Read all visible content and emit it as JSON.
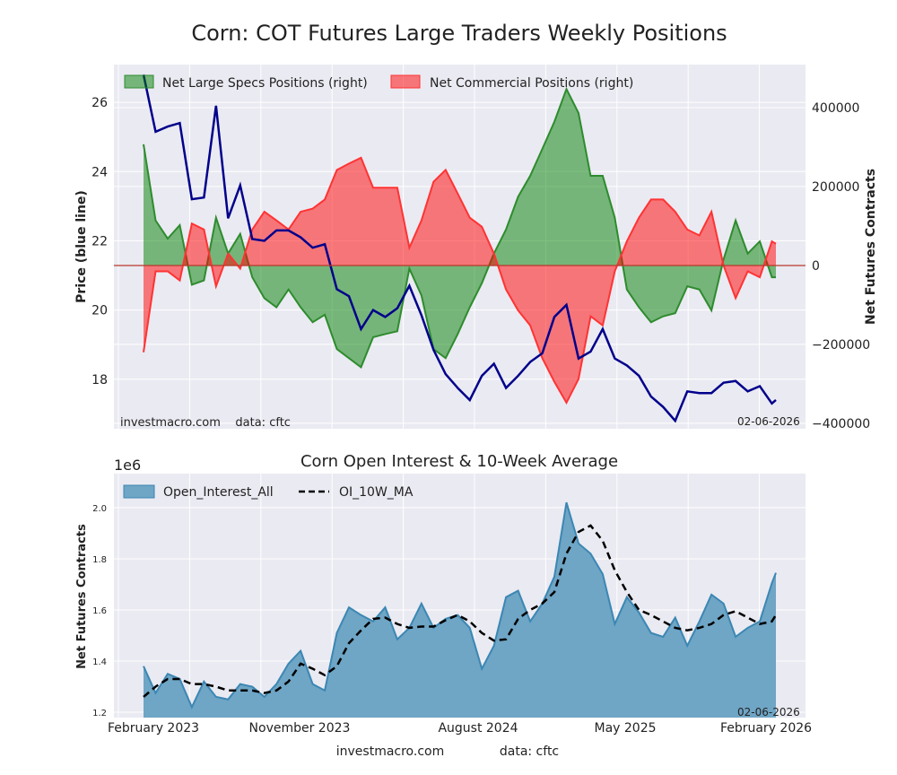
{
  "title": "Corn: COT Futures Large Traders Weekly Positions",
  "watermark_top": "investmacro.com    data: cftc",
  "date_top": "02-06-2026",
  "date_bottom": "02-06-2026",
  "footer": {
    "site": "investmacro.com",
    "source": "data: cftc"
  },
  "colors": {
    "price": "#00008b",
    "specs": "#2e8b2e",
    "commercial": "#ff3333",
    "oi_fill": "#6fa5c5",
    "oi_line": "#3b87b3",
    "ma": "#000000",
    "plot_bg": "#eaeaf2"
  },
  "chart_data": [
    {
      "type": "area",
      "title": "Corn: COT Futures Large Traders Weekly Positions",
      "ylabel_left": "Price (blue line)",
      "ylabel_right": "Net Futures Contracts",
      "ylim_left": [
        16.57,
        27.09
      ],
      "ylim_right": [
        -414000,
        509000
      ],
      "yticks_left": [
        "18",
        "20",
        "22",
        "24",
        "26"
      ],
      "yticks_right": [
        "400000",
        "200000",
        "0",
        "−200000",
        "−400000"
      ],
      "grid": true,
      "legend": "top-left",
      "x": [
        "2023-01-31",
        "2023-02-21",
        "2023-03-14",
        "2023-04-04",
        "2023-04-25",
        "2023-05-16",
        "2023-06-06",
        "2023-06-27",
        "2023-07-18",
        "2023-08-08",
        "2023-08-29",
        "2023-09-19",
        "2023-10-10",
        "2023-10-31",
        "2023-11-21",
        "2023-12-12",
        "2024-01-02",
        "2024-01-23",
        "2024-02-13",
        "2024-03-05",
        "2024-03-26",
        "2024-04-16",
        "2024-05-07",
        "2024-05-28",
        "2024-06-18",
        "2024-07-09",
        "2024-07-30",
        "2024-08-20",
        "2024-09-10",
        "2024-10-01",
        "2024-10-22",
        "2024-11-12",
        "2024-12-03",
        "2024-12-24",
        "2025-01-14",
        "2025-02-04",
        "2025-02-25",
        "2025-03-18",
        "2025-04-08",
        "2025-04-29",
        "2025-05-20",
        "2025-06-10",
        "2025-07-01",
        "2025-07-22",
        "2025-08-12",
        "2025-09-02",
        "2025-09-23",
        "2025-10-14",
        "2025-11-04",
        "2025-11-25",
        "2025-12-16",
        "2026-01-06",
        "2026-01-27",
        "2026-02-03"
      ],
      "series": [
        {
          "name": "Net Large Specs Positions (right)",
          "axis": "right",
          "style": "fill",
          "values": [
            307000,
            114000,
            68000,
            102000,
            -49000,
            -38000,
            121000,
            30000,
            80000,
            -30000,
            -83000,
            -106000,
            -61000,
            -106000,
            -144000,
            -125000,
            -212000,
            -235000,
            -258000,
            -182000,
            -174000,
            -167000,
            -8000,
            -76000,
            -212000,
            -235000,
            -174000,
            -106000,
            -45000,
            30000,
            91000,
            174000,
            227000,
            295000,
            364000,
            447000,
            386000,
            227000,
            227000,
            121000,
            -61000,
            -106000,
            -144000,
            -129000,
            -121000,
            -53000,
            -61000,
            -114000,
            15000,
            114000,
            30000,
            61000,
            -30000,
            -30000
          ]
        },
        {
          "name": "Net Commercial Positions (right)",
          "axis": "right",
          "style": "fill",
          "values": [
            -220000,
            -15000,
            -15000,
            -38000,
            106000,
            91000,
            -53000,
            30000,
            -8000,
            91000,
            136000,
            114000,
            91000,
            136000,
            144000,
            167000,
            242000,
            258000,
            273000,
            197000,
            197000,
            197000,
            45000,
            114000,
            212000,
            242000,
            182000,
            121000,
            98000,
            30000,
            -61000,
            -114000,
            -152000,
            -235000,
            -295000,
            -348000,
            -288000,
            -129000,
            -152000,
            -15000,
            61000,
            121000,
            167000,
            167000,
            136000,
            91000,
            76000,
            136000,
            0,
            -83000,
            -15000,
            -30000,
            61000,
            55000
          ]
        },
        {
          "axis": "left",
          "style": "line",
          "values": [
            26.8,
            25.15,
            25.3,
            25.4,
            23.2,
            23.25,
            25.9,
            22.65,
            23.6,
            22.05,
            22.0,
            22.3,
            22.3,
            22.1,
            21.8,
            21.9,
            20.6,
            20.4,
            19.45,
            20.0,
            19.8,
            20.05,
            20.7,
            19.85,
            18.85,
            18.15,
            17.75,
            17.4,
            18.1,
            18.45,
            17.75,
            18.1,
            18.5,
            18.75,
            19.8,
            20.15,
            18.6,
            18.8,
            19.45,
            18.6,
            18.4,
            18.1,
            17.5,
            17.2,
            16.8,
            17.65,
            17.6,
            17.6,
            17.9,
            17.95,
            17.65,
            17.8,
            17.3,
            17.4
          ]
        }
      ]
    },
    {
      "type": "area",
      "title": "Corn Open Interest & 10-Week Average",
      "ylabel": "Net Futures Contracts",
      "offset_label": "1e6",
      "ylim": [
        1.179,
        2.133
      ],
      "yticks": [
        "1.2",
        "1.4",
        "1.6",
        "1.8",
        "2.0"
      ],
      "xticks": [
        "February 2023",
        "November 2023",
        "August 2024",
        "May 2025",
        "February 2026"
      ],
      "grid": true,
      "legend": "top-left",
      "series": [
        {
          "name": "Open_Interest_All",
          "style": "fill",
          "values": [
            1.38,
            1.275,
            1.35,
            1.33,
            1.22,
            1.32,
            1.26,
            1.25,
            1.31,
            1.3,
            1.26,
            1.31,
            1.39,
            1.44,
            1.31,
            1.285,
            1.51,
            1.61,
            1.58,
            1.555,
            1.61,
            1.485,
            1.53,
            1.625,
            1.53,
            1.565,
            1.58,
            1.53,
            1.37,
            1.46,
            1.65,
            1.675,
            1.555,
            1.625,
            1.73,
            2.02,
            1.86,
            1.82,
            1.74,
            1.545,
            1.65,
            1.59,
            1.51,
            1.495,
            1.57,
            1.46,
            1.555,
            1.66,
            1.625,
            1.495,
            1.53,
            1.555,
            1.705,
            1.745
          ]
        },
        {
          "name": "OI_10W_MA",
          "style": "dashed",
          "values": [
            1.26,
            1.3,
            1.33,
            1.33,
            1.31,
            1.31,
            1.3,
            1.285,
            1.285,
            1.285,
            1.275,
            1.285,
            1.32,
            1.39,
            1.37,
            1.345,
            1.38,
            1.47,
            1.52,
            1.565,
            1.57,
            1.545,
            1.53,
            1.535,
            1.535,
            1.56,
            1.58,
            1.555,
            1.51,
            1.48,
            1.485,
            1.565,
            1.6,
            1.625,
            1.67,
            1.82,
            1.905,
            1.93,
            1.87,
            1.755,
            1.67,
            1.6,
            1.58,
            1.555,
            1.53,
            1.52,
            1.53,
            1.545,
            1.58,
            1.595,
            1.57,
            1.545,
            1.555,
            1.58
          ]
        }
      ]
    }
  ]
}
